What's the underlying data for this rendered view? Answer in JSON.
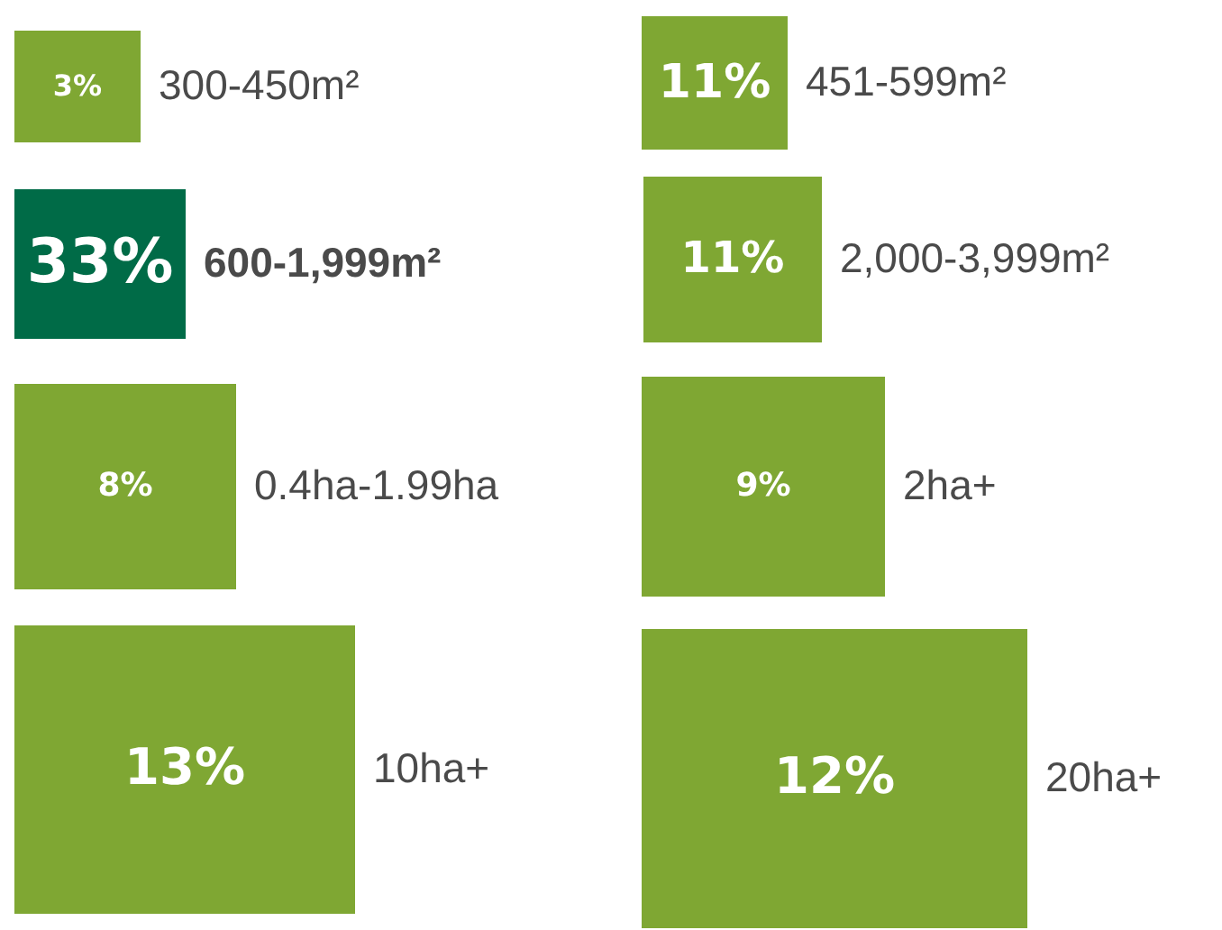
{
  "chart_data": {
    "type": "other",
    "categories": [
      "300-450m²",
      "451-599m²",
      "600-1,999m²",
      "2,000-3,999m²",
      "0.4ha-1.99ha",
      "2ha+",
      "10ha+",
      "20ha+"
    ],
    "values": [
      3,
      11,
      33,
      11,
      8,
      9,
      13,
      12
    ],
    "value_labels": [
      "3%",
      "11%",
      "33%",
      "11%",
      "8%",
      "9%",
      "13%",
      "12%"
    ],
    "colors": [
      "#7fa733",
      "#7fa733",
      "#006b47",
      "#7fa733",
      "#7fa733",
      "#7fa733",
      "#7fa733",
      "#7fa733"
    ]
  }
}
